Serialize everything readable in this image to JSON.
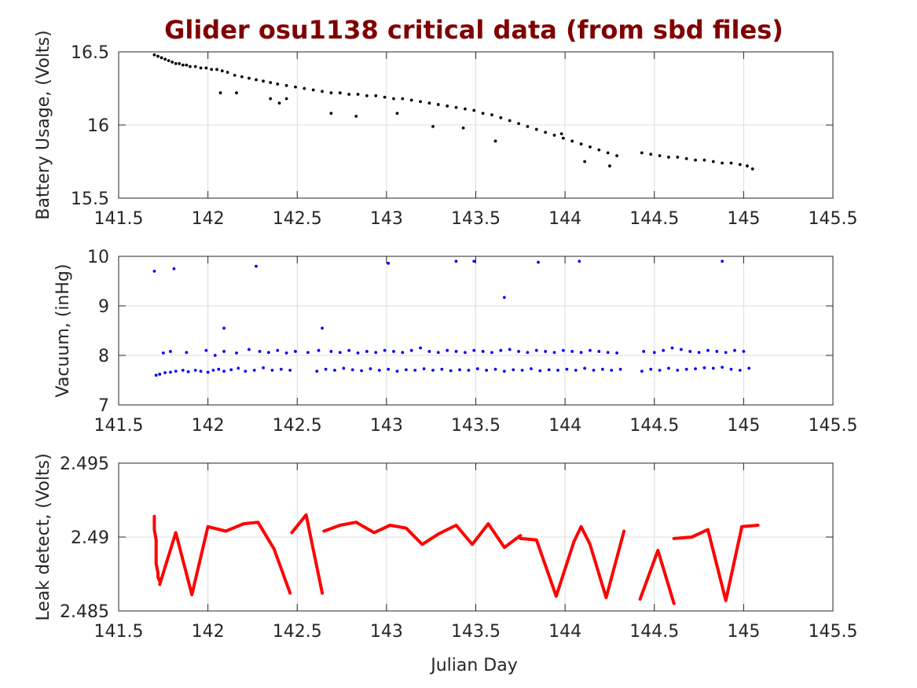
{
  "title": "Glider osu1138 critical data (from sbd files)",
  "chart_data": [
    {
      "type": "scatter",
      "ylabel": "Battery Usage, (Volts)",
      "xlabel": "",
      "xlim": [
        141.5,
        145.5
      ],
      "ylim": [
        15.5,
        16.5
      ],
      "xticks": [
        141.5,
        142,
        142.5,
        143,
        143.5,
        144,
        144.5,
        145,
        145.5
      ],
      "xtick_labels": [
        "141.5",
        "142",
        "142.5",
        "143",
        "143.5",
        "144",
        "144.5",
        "145",
        "145.5"
      ],
      "yticks": [
        15.5,
        16,
        16.5
      ],
      "ytick_labels": [
        "15.5",
        "16",
        "16.5"
      ],
      "grid": true,
      "color": "#000000",
      "series": [
        {
          "x": [
            141.7,
            141.72,
            141.74,
            141.76,
            141.78,
            141.8,
            141.82,
            141.84,
            141.86,
            141.88,
            141.9,
            141.93,
            141.96,
            141.99,
            142.02,
            142.05,
            142.08,
            142.11,
            142.15,
            142.19,
            142.23,
            142.27,
            142.31,
            142.35,
            142.39,
            142.44,
            142.49,
            142.54,
            142.59,
            142.64,
            142.69,
            142.74,
            142.79,
            142.84,
            142.89,
            142.94,
            142.99,
            143.04,
            143.09,
            143.14,
            143.19,
            143.24,
            143.29,
            143.34,
            143.39,
            143.44,
            143.49,
            143.54,
            143.59,
            143.64,
            143.69,
            143.74,
            143.79,
            143.84,
            143.89,
            143.94,
            143.99,
            144.04,
            144.09,
            144.14,
            144.19,
            144.24,
            144.29,
            144.43,
            144.48,
            144.53,
            144.58,
            144.63,
            144.68,
            144.73,
            144.78,
            144.83,
            144.88,
            144.93,
            144.98,
            145.02,
            145.05,
            142.07,
            142.16,
            142.35,
            142.4,
            142.44,
            142.69,
            142.83,
            143.06,
            143.26,
            143.43,
            143.61,
            143.98,
            144.11,
            144.25
          ],
          "y": [
            16.48,
            16.47,
            16.46,
            16.45,
            16.44,
            16.43,
            16.42,
            16.42,
            16.41,
            16.41,
            16.4,
            16.4,
            16.39,
            16.39,
            16.38,
            16.38,
            16.37,
            16.36,
            16.34,
            16.33,
            16.32,
            16.31,
            16.3,
            16.29,
            16.28,
            16.27,
            16.26,
            16.25,
            16.24,
            16.23,
            16.22,
            16.22,
            16.21,
            16.21,
            16.2,
            16.2,
            16.19,
            16.18,
            16.18,
            16.17,
            16.16,
            16.15,
            16.14,
            16.13,
            16.12,
            16.11,
            16.1,
            16.08,
            16.07,
            16.05,
            16.03,
            16.01,
            15.99,
            15.97,
            15.95,
            15.93,
            15.91,
            15.89,
            15.87,
            15.85,
            15.83,
            15.81,
            15.79,
            15.81,
            15.8,
            15.79,
            15.78,
            15.78,
            15.77,
            15.76,
            15.76,
            15.75,
            15.74,
            15.74,
            15.73,
            15.72,
            15.7,
            16.22,
            16.22,
            16.18,
            16.15,
            16.18,
            16.08,
            16.06,
            16.08,
            15.99,
            15.98,
            15.89,
            15.94,
            15.75,
            15.72
          ]
        }
      ]
    },
    {
      "type": "scatter",
      "ylabel": "Vacuum, (inHg)",
      "xlabel": "",
      "xlim": [
        141.5,
        145.5
      ],
      "ylim": [
        7,
        10
      ],
      "xticks": [
        141.5,
        142,
        142.5,
        143,
        143.5,
        144,
        144.5,
        145,
        145.5
      ],
      "xtick_labels": [
        "141.5",
        "142",
        "142.5",
        "143",
        "143.5",
        "144",
        "144.5",
        "145",
        "145.5"
      ],
      "yticks": [
        7,
        8,
        9,
        10
      ],
      "ytick_labels": [
        "7",
        "8",
        "9",
        "10"
      ],
      "grid": true,
      "color": "#0000ff",
      "series": [
        {
          "x": [
            141.71,
            141.73,
            141.76,
            141.79,
            141.82,
            141.86,
            141.89,
            141.93,
            141.96,
            142.0,
            142.03,
            142.06,
            142.09,
            142.13,
            142.17,
            142.21,
            142.26,
            142.31,
            142.36,
            142.41,
            142.46,
            142.61,
            142.66,
            142.71,
            142.76,
            142.81,
            142.86,
            142.91,
            142.96,
            143.01,
            143.06,
            143.11,
            143.16,
            143.21,
            143.26,
            143.31,
            143.36,
            143.41,
            143.46,
            143.51,
            143.56,
            143.61,
            143.66,
            143.71,
            143.76,
            143.81,
            143.86,
            143.91,
            143.96,
            144.01,
            144.06,
            144.11,
            144.16,
            144.21,
            144.26,
            144.31,
            144.43,
            144.48,
            144.53,
            144.58,
            144.63,
            144.68,
            144.73,
            144.78,
            144.83,
            144.88,
            144.93,
            144.98,
            145.03,
            141.75,
            141.79,
            141.88,
            141.99,
            142.04,
            142.09,
            142.16,
            142.23,
            142.29,
            142.34,
            142.39,
            142.44,
            142.49,
            142.56,
            142.62,
            142.69,
            142.74,
            142.79,
            142.84,
            142.89,
            142.94,
            142.99,
            143.04,
            143.09,
            143.14,
            143.19,
            143.24,
            143.29,
            143.34,
            143.39,
            143.44,
            143.49,
            143.54,
            143.59,
            143.64,
            143.69,
            143.74,
            143.79,
            143.84,
            143.89,
            143.94,
            143.99,
            144.04,
            144.09,
            144.14,
            144.19,
            144.24,
            144.29,
            144.44,
            144.5,
            144.55,
            144.6,
            144.65,
            144.7,
            144.75,
            144.8,
            144.85,
            144.9,
            144.95,
            145.0,
            141.7,
            141.81,
            142.27,
            143.01,
            143.39,
            143.49,
            143.85,
            144.08,
            144.88,
            143.66,
            142.09,
            142.64
          ],
          "y": [
            7.6,
            7.62,
            7.65,
            7.66,
            7.68,
            7.7,
            7.67,
            7.7,
            7.68,
            7.66,
            7.7,
            7.72,
            7.68,
            7.71,
            7.74,
            7.68,
            7.7,
            7.75,
            7.7,
            7.72,
            7.7,
            7.68,
            7.72,
            7.7,
            7.74,
            7.71,
            7.69,
            7.73,
            7.7,
            7.72,
            7.68,
            7.71,
            7.7,
            7.73,
            7.7,
            7.72,
            7.69,
            7.71,
            7.7,
            7.73,
            7.7,
            7.72,
            7.68,
            7.71,
            7.7,
            7.73,
            7.69,
            7.71,
            7.7,
            7.72,
            7.7,
            7.74,
            7.7,
            7.72,
            7.7,
            7.72,
            7.68,
            7.72,
            7.7,
            7.74,
            7.7,
            7.72,
            7.73,
            7.75,
            7.74,
            7.76,
            7.72,
            7.7,
            7.74,
            8.05,
            8.08,
            8.06,
            8.1,
            8.0,
            8.08,
            8.05,
            8.12,
            8.08,
            8.06,
            8.1,
            8.05,
            8.08,
            8.06,
            8.1,
            8.08,
            8.06,
            8.1,
            8.05,
            8.08,
            8.06,
            8.1,
            8.08,
            8.06,
            8.1,
            8.15,
            8.08,
            8.06,
            8.1,
            8.08,
            8.06,
            8.1,
            8.08,
            8.06,
            8.1,
            8.12,
            8.08,
            8.06,
            8.1,
            8.08,
            8.06,
            8.1,
            8.08,
            8.06,
            8.1,
            8.08,
            8.06,
            8.05,
            8.08,
            8.06,
            8.1,
            8.15,
            8.12,
            8.08,
            8.06,
            8.1,
            8.08,
            8.06,
            8.1,
            8.08,
            9.7,
            9.75,
            9.8,
            9.86,
            9.9,
            9.9,
            9.88,
            9.9,
            9.9,
            9.17,
            8.55,
            8.55
          ]
        }
      ]
    },
    {
      "type": "line",
      "ylabel": "Leak detect, (Volts)",
      "xlabel": "Julian Day",
      "xlim": [
        141.5,
        145.5
      ],
      "ylim": [
        2.485,
        2.495
      ],
      "xticks": [
        141.5,
        142,
        142.5,
        143,
        143.5,
        144,
        144.5,
        145,
        145.5
      ],
      "xtick_labels": [
        "141.5",
        "142",
        "142.5",
        "143",
        "143.5",
        "144",
        "144.5",
        "145",
        "145.5"
      ],
      "yticks": [
        2.485,
        2.49,
        2.495
      ],
      "ytick_labels": [
        "2.485",
        "2.49",
        "2.495"
      ],
      "grid": true,
      "color": "#ff0000",
      "series": [
        {
          "segments": [
            {
              "x": [
                141.7,
                141.7,
                141.71,
                141.71,
                141.71,
                141.72,
                141.72,
                141.73
              ],
              "y": [
                2.4914,
                2.4905,
                2.4898,
                2.489,
                2.4882,
                2.4876,
                2.4873,
                2.487
              ]
            },
            {
              "x": [
                141.73,
                141.82,
                141.91,
                142.0,
                142.1,
                142.2,
                142.28,
                142.37,
                142.46
              ],
              "y": [
                2.4868,
                2.4903,
                2.4861,
                2.4907,
                2.4904,
                2.4909,
                2.491,
                2.4892,
                2.4862
              ]
            },
            {
              "x": [
                142.47,
                142.55,
                142.64
              ],
              "y": [
                2.4903,
                2.4915,
                2.4862
              ]
            },
            {
              "x": [
                142.65,
                142.74,
                142.83,
                142.93,
                143.02,
                143.11,
                143.2,
                143.29,
                143.39,
                143.48,
                143.57,
                143.66,
                143.75
              ],
              "y": [
                2.4904,
                2.4908,
                2.491,
                2.4903,
                2.4908,
                2.4906,
                2.4895,
                2.4902,
                2.4908,
                2.4895,
                2.4909,
                2.4893,
                2.4901
              ]
            },
            {
              "x": [
                143.75,
                143.84,
                143.95,
                144.05,
                144.09,
                144.14,
                144.23,
                144.33
              ],
              "y": [
                2.4899,
                2.4898,
                2.486,
                2.4897,
                2.4907,
                2.4895,
                2.4859,
                2.4904
              ]
            },
            {
              "x": [
                144.42,
                144.52,
                144.61
              ],
              "y": [
                2.4858,
                2.4891,
                2.4855
              ]
            },
            {
              "x": [
                144.61,
                144.71,
                144.8,
                144.9,
                144.99,
                145.08
              ],
              "y": [
                2.4899,
                2.49,
                2.4905,
                2.4857,
                2.4907,
                2.4908
              ]
            }
          ]
        }
      ]
    }
  ]
}
